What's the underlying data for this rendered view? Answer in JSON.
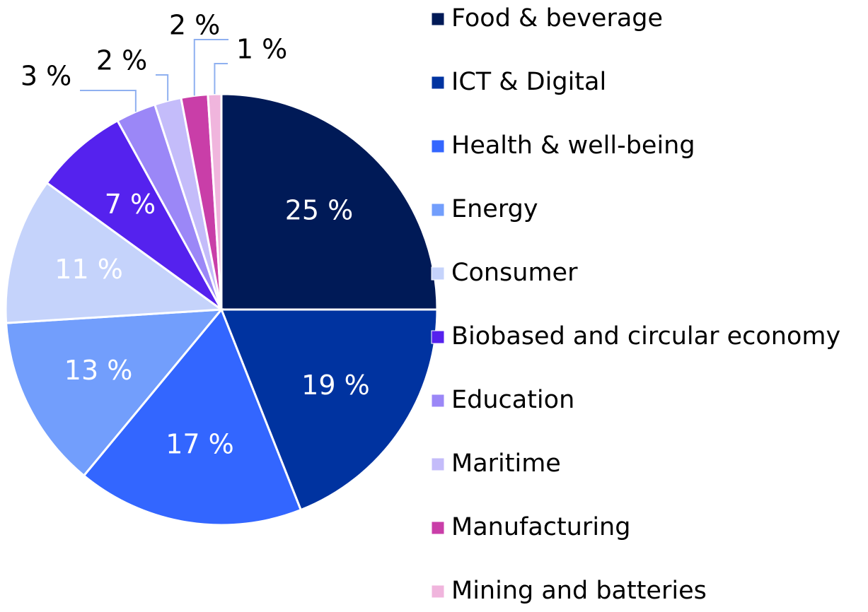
{
  "chart_data": {
    "type": "pie",
    "categories": [
      "Food & beverage",
      "ICT & Digital",
      "Health & well-being",
      "Energy",
      "Consumer",
      "Biobased and circular economy",
      "Education",
      "Maritime",
      "Manufacturing",
      "Mining and batteries"
    ],
    "values": [
      25,
      19,
      17,
      13,
      11,
      7,
      3,
      2,
      2,
      1
    ],
    "value_labels": [
      "25 %",
      "19 %",
      "17 %",
      "13 %",
      "11 %",
      "7 %",
      "3 %",
      "2 %",
      "2 %",
      "1 %"
    ],
    "colors": [
      "#001a57",
      "#0033a0",
      "#3366ff",
      "#729efc",
      "#c5d3fb",
      "#5522ee",
      "#9b87f7",
      "#c4bcfa",
      "#c93ea8",
      "#f0b5dd"
    ],
    "legend": "right"
  }
}
